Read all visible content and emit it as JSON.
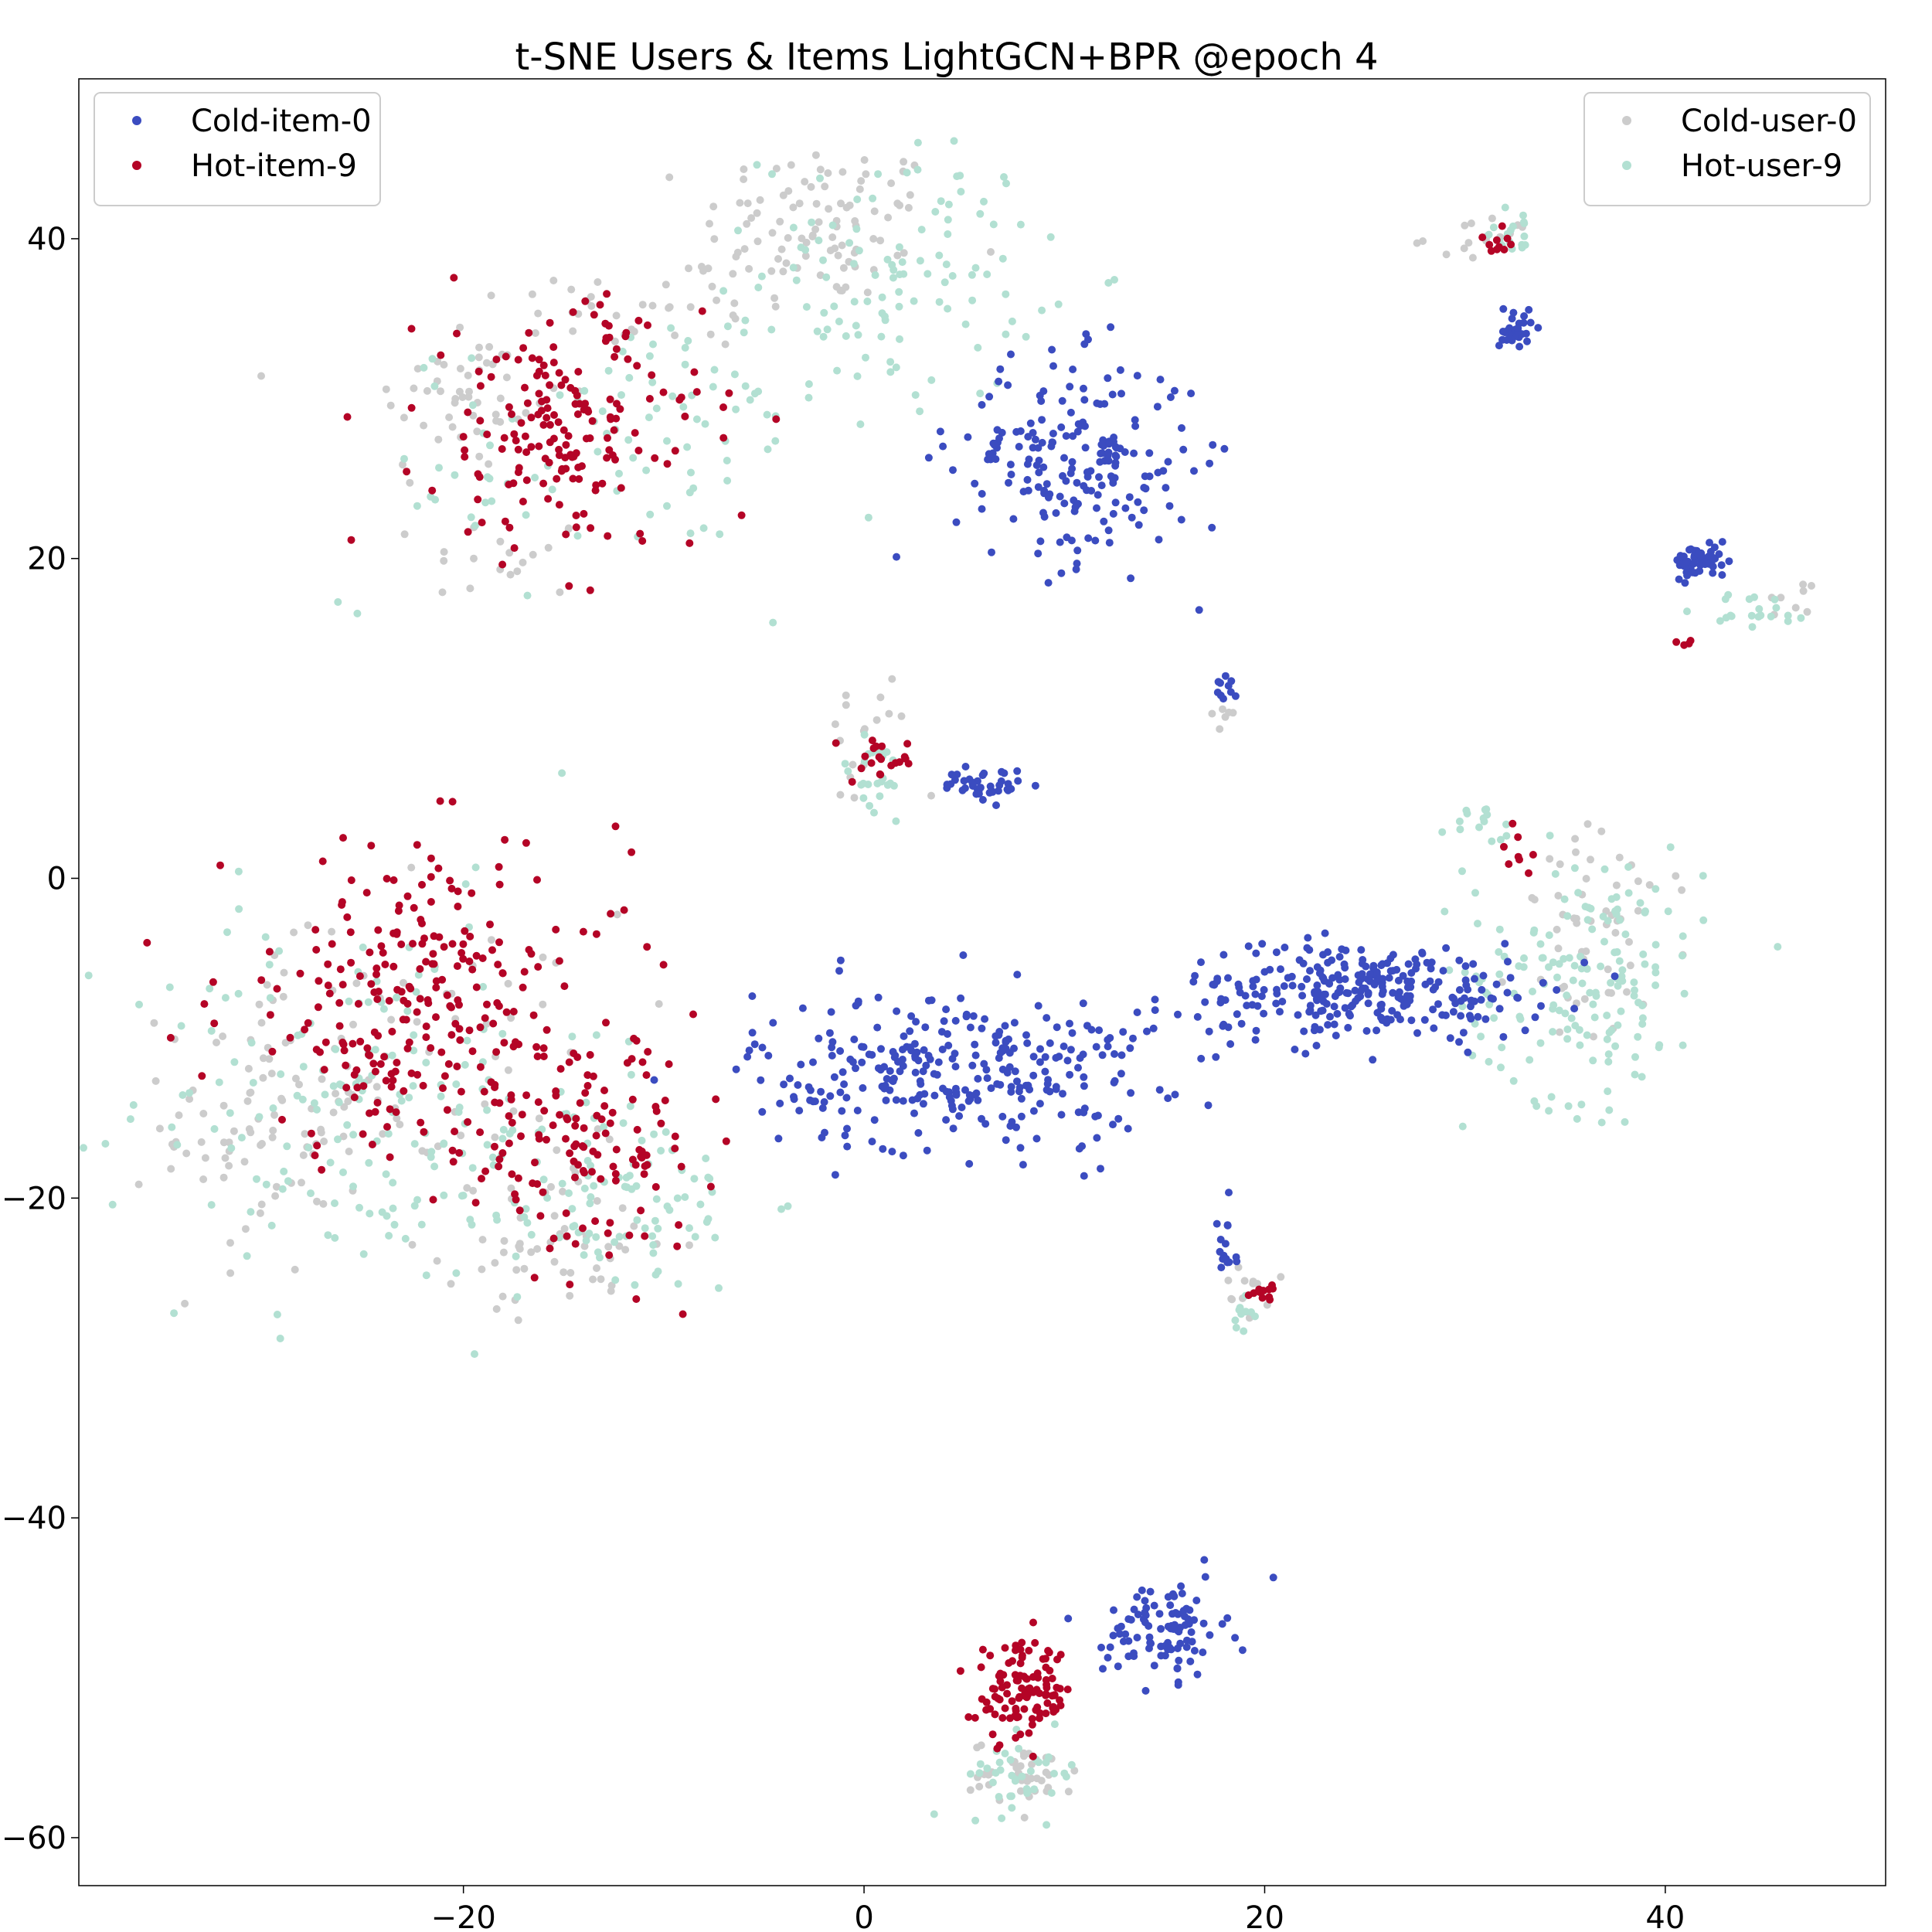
{
  "chart_data": {
    "type": "scatter",
    "title": "t-SNE Users & Items LightGCN+BPR @epoch 4",
    "xlabel": "",
    "ylabel": "",
    "xlim": [
      -39.2,
      51
    ],
    "ylim": [
      -63,
      50
    ],
    "xticks": [
      -20,
      0,
      20,
      40
    ],
    "yticks": [
      -60,
      -40,
      -20,
      0,
      20,
      40
    ],
    "grid": false,
    "legends": [
      {
        "placement": "top-left",
        "entries": [
          "Cold-item-0",
          "Hot-item-9"
        ]
      },
      {
        "placement": "top-right",
        "entries": [
          "Cold-user-0",
          "Hot-user-9"
        ]
      }
    ],
    "series": [
      {
        "name": "Cold-user-0",
        "color": "#cccccc",
        "clusters": [
          {
            "cx": -2,
            "cy": 41,
            "sx": 3,
            "sy": 2.5,
            "n": 90
          },
          {
            "cx": -20,
            "cy": 30,
            "sx": 2.5,
            "sy": 3,
            "n": 50
          },
          {
            "cx": -10,
            "cy": 36,
            "sx": 4,
            "sy": 1.5,
            "n": 40
          },
          {
            "cx": -18,
            "cy": 20,
            "sx": 2,
            "sy": 1.5,
            "n": 18
          },
          {
            "cx": -30,
            "cy": -15,
            "sx": 2.5,
            "sy": 5,
            "n": 90
          },
          {
            "cx": -15,
            "cy": -23,
            "sx": 3,
            "sy": 2,
            "n": 50
          },
          {
            "cx": -22,
            "cy": -12,
            "sx": 5,
            "sy": 5,
            "n": 60
          },
          {
            "cx": 0,
            "cy": 8,
            "sx": 1.2,
            "sy": 2.5,
            "n": 18
          },
          {
            "cx": 18,
            "cy": 10.5,
            "sx": 0.3,
            "sy": 0.5,
            "n": 6
          },
          {
            "cx": 31,
            "cy": 40,
            "sx": 1.5,
            "sy": 0.7,
            "n": 15
          },
          {
            "cx": 46,
            "cy": 17.5,
            "sx": 0.6,
            "sy": 0.4,
            "n": 8
          },
          {
            "cx": 37,
            "cy": -4,
            "sx": 2.2,
            "sy": 3.5,
            "n": 55
          },
          {
            "cx": 8,
            "cy": -56,
            "sx": 1.3,
            "sy": 1,
            "n": 40
          },
          {
            "cx": 19,
            "cy": -26,
            "sx": 0.6,
            "sy": 0.8,
            "n": 12
          }
        ]
      },
      {
        "name": "Hot-user-9",
        "color": "#b2e0d2",
        "clusters": [
          {
            "cx": 2,
            "cy": 38,
            "sx": 3.5,
            "sy": 4,
            "n": 110
          },
          {
            "cx": -10,
            "cy": 28,
            "sx": 4,
            "sy": 4,
            "n": 70
          },
          {
            "cx": -20,
            "cy": 25,
            "sx": 3,
            "sy": 4,
            "n": 25
          },
          {
            "cx": -25,
            "cy": -14,
            "sx": 6,
            "sy": 6,
            "n": 170
          },
          {
            "cx": -13,
            "cy": -20,
            "sx": 4,
            "sy": 3,
            "n": 100
          },
          {
            "cx": 0.5,
            "cy": 6,
            "sx": 1,
            "sy": 1.5,
            "n": 25
          },
          {
            "cx": 32.5,
            "cy": 40.5,
            "sx": 0.8,
            "sy": 0.7,
            "n": 18
          },
          {
            "cx": 44.5,
            "cy": 16.8,
            "sx": 1.4,
            "sy": 0.6,
            "n": 20
          },
          {
            "cx": 31,
            "cy": 3,
            "sx": 0.8,
            "sy": 0.8,
            "n": 15
          },
          {
            "cx": 36,
            "cy": -6,
            "sx": 3,
            "sy": 4,
            "n": 160
          },
          {
            "cx": 8,
            "cy": -56,
            "sx": 1.4,
            "sy": 1.2,
            "n": 40
          },
          {
            "cx": 19,
            "cy": -27,
            "sx": 0.5,
            "sy": 0.6,
            "n": 10
          }
        ]
      },
      {
        "name": "Cold-item-0",
        "color": "#3b4cc0",
        "clusters": [
          {
            "cx": 10.5,
            "cy": 26,
            "sx": 3,
            "sy": 3.2,
            "n": 200
          },
          {
            "cx": 32.5,
            "cy": 34.5,
            "sx": 0.4,
            "sy": 0.8,
            "n": 30
          },
          {
            "cx": 41.8,
            "cy": 19.8,
            "sx": 0.7,
            "sy": 0.5,
            "n": 60
          },
          {
            "cx": 18,
            "cy": 12,
            "sx": 0.3,
            "sy": 0.5,
            "n": 10
          },
          {
            "cx": 6,
            "cy": 5.8,
            "sx": 1,
            "sy": 0.5,
            "n": 40
          },
          {
            "cx": 4.5,
            "cy": -12,
            "sx": 5,
            "sy": 2.5,
            "n": 300
          },
          {
            "cx": 25,
            "cy": -7,
            "sx": 4.5,
            "sy": 1.5,
            "n": 280
          },
          {
            "cx": 15,
            "cy": -47,
            "sx": 1.5,
            "sy": 1.5,
            "n": 100
          },
          {
            "cx": 18,
            "cy": -23,
            "sx": 0.3,
            "sy": 1.2,
            "n": 15
          }
        ]
      },
      {
        "name": "Hot-item-9",
        "color": "#b40426",
        "clusters": [
          {
            "cx": -15,
            "cy": 28,
            "sx": 3.5,
            "sy": 4,
            "n": 180
          },
          {
            "cx": -22,
            "cy": -8,
            "sx": 5,
            "sy": 5,
            "n": 260
          },
          {
            "cx": -14,
            "cy": -17,
            "sx": 3,
            "sy": 3,
            "n": 120
          },
          {
            "cx": 1,
            "cy": 7.3,
            "sx": 0.8,
            "sy": 0.7,
            "n": 20
          },
          {
            "cx": 31.5,
            "cy": 39.8,
            "sx": 0.5,
            "sy": 0.4,
            "n": 10
          },
          {
            "cx": 41,
            "cy": 14.7,
            "sx": 0.2,
            "sy": 0.1,
            "n": 4
          },
          {
            "cx": 32.5,
            "cy": 1.5,
            "sx": 0.6,
            "sy": 1,
            "n": 8
          },
          {
            "cx": 8,
            "cy": -51,
            "sx": 1.2,
            "sy": 1.5,
            "n": 110
          },
          {
            "cx": 20,
            "cy": -26,
            "sx": 0.4,
            "sy": 0.3,
            "n": 12
          }
        ]
      }
    ]
  }
}
